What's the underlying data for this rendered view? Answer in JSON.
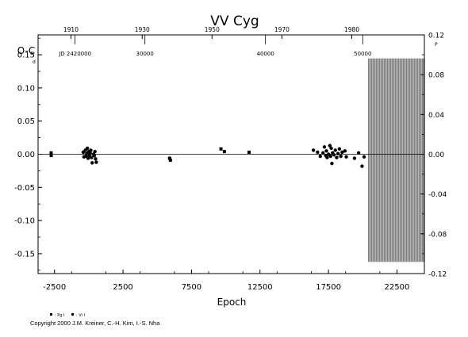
{
  "chart_data": {
    "type": "scatter",
    "title": "VV Cyg",
    "xlabel": "Epoch",
    "ylabel": "O-C",
    "ylabel_unit_left": "d",
    "ylabel_unit_right": "P",
    "xlim": [
      -3700,
      24500
    ],
    "ylim": [
      -0.18,
      0.18
    ],
    "right_ylim": [
      -0.12,
      0.12
    ],
    "x_ticks": [
      -2500,
      2500,
      7500,
      12500,
      17500,
      22500
    ],
    "x_tick_labels": [
      "-2500",
      "2500",
      "7500",
      "12500",
      "17500",
      "22500"
    ],
    "y_ticks": [
      0.15,
      0.1,
      0.05,
      0.0,
      -0.05,
      -0.1,
      -0.15
    ],
    "y_tick_labels": [
      "0.15",
      "0.10",
      "0.05",
      "0.00",
      "-0.05",
      "-0.10",
      "-0.15"
    ],
    "right_y_ticks": [
      0.12,
      0.08,
      0.04,
      0.0,
      -0.04,
      -0.08,
      -0.12
    ],
    "right_y_tick_labels": [
      "0.12",
      "0.08",
      "0.04",
      "0.00",
      "-0.04",
      "-0.08",
      "-0.12"
    ],
    "top_year_ticks": [
      {
        "epoch": -1300,
        "label": "1910"
      },
      {
        "epoch": 3900,
        "label": "1930"
      },
      {
        "epoch": 9000,
        "label": "1950"
      },
      {
        "epoch": 14100,
        "label": "1970"
      },
      {
        "epoch": 19200,
        "label": "1980"
      }
    ],
    "jd_labels": [
      {
        "epoch": -1000,
        "label": "JD 2420000"
      },
      {
        "epoch": 4100,
        "label": "30000"
      },
      {
        "epoch": 12900,
        "label": "40000"
      },
      {
        "epoch": 20000,
        "label": "50000"
      }
    ],
    "future_band": [
      20400,
      24500
    ],
    "grid": false,
    "legend": [
      {
        "name": ": Pg I",
        "marker": "square"
      },
      {
        "name": ": Vi I",
        "marker": "circle"
      }
    ],
    "series": [
      {
        "name": ": Pg I",
        "marker": "square",
        "points": [
          {
            "x": -2750,
            "y": 0.002
          },
          {
            "x": -2740,
            "y": -0.002
          },
          {
            "x": 5900,
            "y": -0.006
          },
          {
            "x": 5960,
            "y": -0.009
          },
          {
            "x": 9650,
            "y": 0.008
          },
          {
            "x": 9900,
            "y": 0.004
          },
          {
            "x": 11700,
            "y": 0.003
          }
        ]
      },
      {
        "name": ": Vi I",
        "marker": "circle",
        "points": [
          {
            "x": -400,
            "y": 0.003
          },
          {
            "x": -350,
            "y": -0.004
          },
          {
            "x": -250,
            "y": 0.006
          },
          {
            "x": -200,
            "y": -0.003
          },
          {
            "x": -150,
            "y": 0.001
          },
          {
            "x": -100,
            "y": 0.009
          },
          {
            "x": -50,
            "y": -0.006
          },
          {
            "x": 0,
            "y": 0.004
          },
          {
            "x": 50,
            "y": -0.002
          },
          {
            "x": 100,
            "y": 0.002
          },
          {
            "x": 150,
            "y": 0.006
          },
          {
            "x": 200,
            "y": -0.005
          },
          {
            "x": 250,
            "y": -0.013
          },
          {
            "x": 350,
            "y": 0.0
          },
          {
            "x": 400,
            "y": -0.002
          },
          {
            "x": 450,
            "y": 0.004
          },
          {
            "x": 500,
            "y": -0.007
          },
          {
            "x": 550,
            "y": -0.012
          },
          {
            "x": 16400,
            "y": 0.006
          },
          {
            "x": 16700,
            "y": 0.003
          },
          {
            "x": 16900,
            "y": -0.003
          },
          {
            "x": 17100,
            "y": 0.002
          },
          {
            "x": 17200,
            "y": 0.011
          },
          {
            "x": 17300,
            "y": -0.002
          },
          {
            "x": 17350,
            "y": 0.005
          },
          {
            "x": 17400,
            "y": -0.005
          },
          {
            "x": 17500,
            "y": 0.0
          },
          {
            "x": 17600,
            "y": 0.013
          },
          {
            "x": 17650,
            "y": -0.003
          },
          {
            "x": 17700,
            "y": 0.009
          },
          {
            "x": 17750,
            "y": -0.014
          },
          {
            "x": 17800,
            "y": 0.002
          },
          {
            "x": 17900,
            "y": -0.001
          },
          {
            "x": 18000,
            "y": 0.006
          },
          {
            "x": 18100,
            "y": -0.005
          },
          {
            "x": 18200,
            "y": 0.001
          },
          {
            "x": 18300,
            "y": 0.008
          },
          {
            "x": 18400,
            "y": -0.003
          },
          {
            "x": 18500,
            "y": 0.003
          },
          {
            "x": 18700,
            "y": 0.005
          },
          {
            "x": 18800,
            "y": -0.004
          },
          {
            "x": 19400,
            "y": -0.006
          },
          {
            "x": 19700,
            "y": 0.002
          },
          {
            "x": 19950,
            "y": -0.018
          },
          {
            "x": 20100,
            "y": -0.004
          }
        ]
      }
    ]
  },
  "copyright": "Copyright 2000 J.M. Kreiner, C.-H. Kim, I.-S. Nha"
}
